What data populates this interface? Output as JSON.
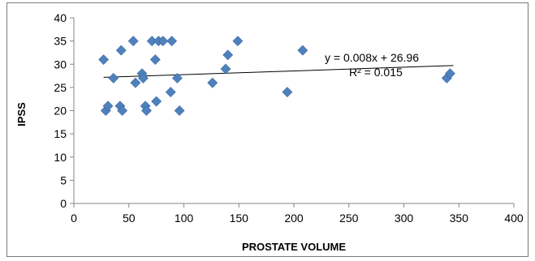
{
  "chart_data": {
    "type": "scatter",
    "title": "",
    "xlabel": "PROSTATE VOLUME",
    "ylabel": "IPSS",
    "xlim": [
      0,
      400
    ],
    "ylim": [
      0,
      40
    ],
    "xticks": [
      "0",
      "50",
      "100",
      "150",
      "200",
      "250",
      "300",
      "350",
      "400"
    ],
    "yticks": [
      "0",
      "5",
      "10",
      "15",
      "20",
      "25",
      "30",
      "35",
      "40"
    ],
    "grid": false,
    "legend": "none",
    "marker_color": "#4f81bd",
    "trendline_color": "#000000",
    "series": [
      {
        "points": [
          {
            "x": 27,
            "y": 31
          },
          {
            "x": 29,
            "y": 20
          },
          {
            "x": 31,
            "y": 21
          },
          {
            "x": 36,
            "y": 27
          },
          {
            "x": 42,
            "y": 21
          },
          {
            "x": 43,
            "y": 33
          },
          {
            "x": 44,
            "y": 20
          },
          {
            "x": 54,
            "y": 35
          },
          {
            "x": 56,
            "y": 26
          },
          {
            "x": 62,
            "y": 28
          },
          {
            "x": 63,
            "y": 27
          },
          {
            "x": 65,
            "y": 21
          },
          {
            "x": 66,
            "y": 20
          },
          {
            "x": 71,
            "y": 35
          },
          {
            "x": 74,
            "y": 31
          },
          {
            "x": 75,
            "y": 22
          },
          {
            "x": 77,
            "y": 35
          },
          {
            "x": 81,
            "y": 35
          },
          {
            "x": 88,
            "y": 24
          },
          {
            "x": 89,
            "y": 35
          },
          {
            "x": 94,
            "y": 27
          },
          {
            "x": 96,
            "y": 20
          },
          {
            "x": 126,
            "y": 26
          },
          {
            "x": 138,
            "y": 29
          },
          {
            "x": 140,
            "y": 32
          },
          {
            "x": 149,
            "y": 35
          },
          {
            "x": 194,
            "y": 24
          },
          {
            "x": 208,
            "y": 33
          },
          {
            "x": 339,
            "y": 27
          },
          {
            "x": 342,
            "y": 28
          }
        ]
      }
    ],
    "trendline": {
      "slope": 0.008,
      "intercept": 26.96,
      "x_range": [
        27,
        345
      ],
      "equation": "y = 0.008x + 26.96",
      "r_squared": "R² = 0.015"
    }
  }
}
